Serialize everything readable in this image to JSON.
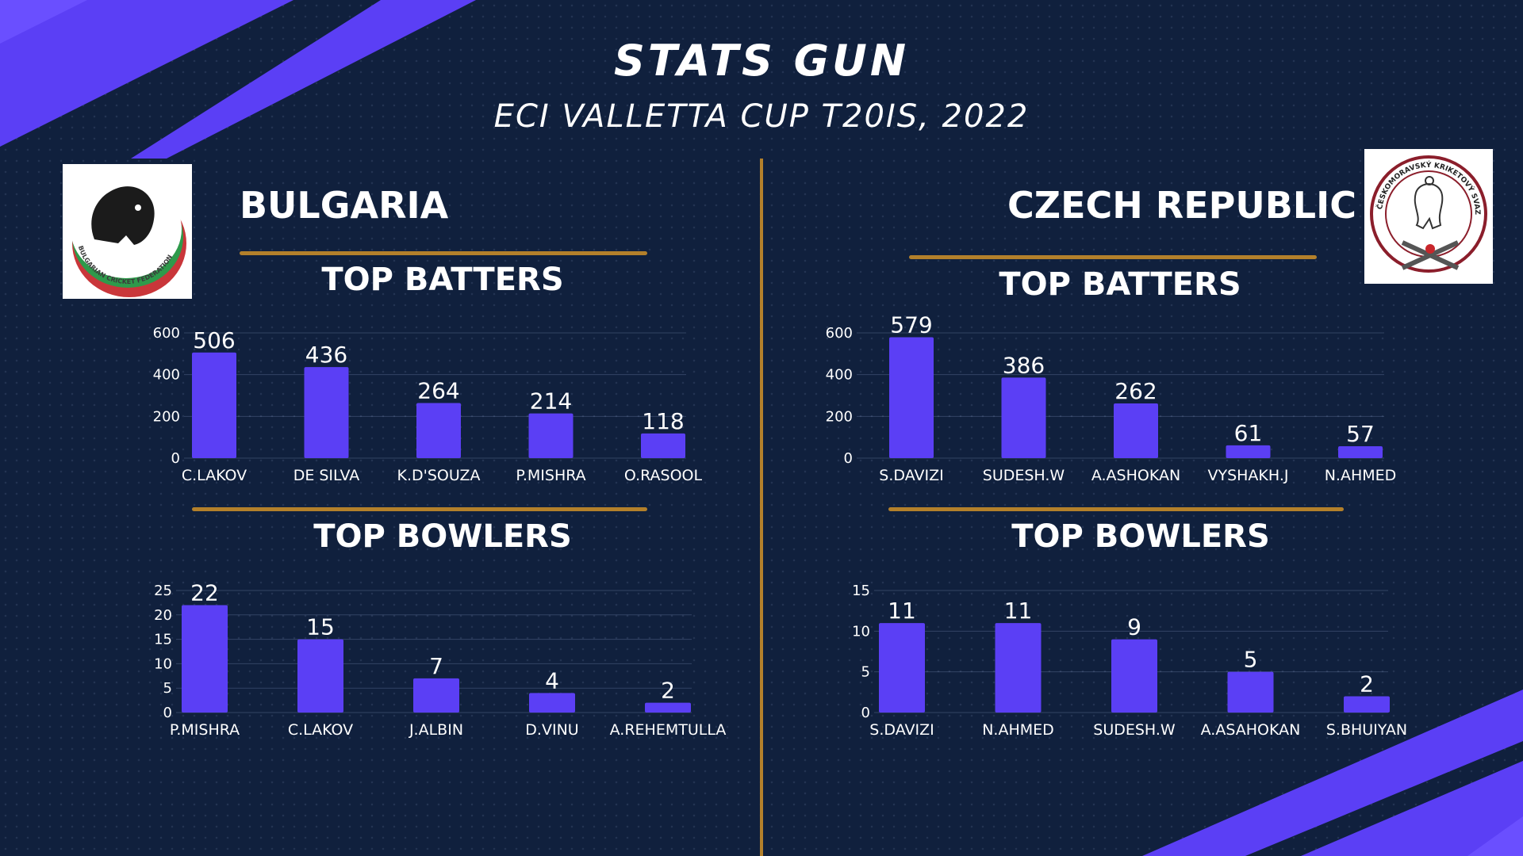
{
  "header": {
    "title": "STATS GUN",
    "subtitle": "ECI VALLETTA CUP T20IS, 2022"
  },
  "colors": {
    "background": "#10203d",
    "accent": "#5b3ff5",
    "gold": "#b3802b"
  },
  "teams": {
    "left": {
      "name": "BULGARIA",
      "logo_text": "BULGARIAN CRICKET FEDERATION"
    },
    "right": {
      "name": "CZECH REPUBLIC",
      "logo_text": "ČESKOMORAVSKÝ KRIKETOVÝ SVAZ"
    }
  },
  "sections": {
    "batters": "TOP BATTERS",
    "bowlers": "TOP BOWLERS"
  },
  "chart_data": [
    {
      "type": "bar",
      "team": "BULGARIA",
      "title": "TOP BATTERS",
      "categories": [
        "C.LAKOV",
        "DE SILVA",
        "K.D'SOUZA",
        "P.MISHRA",
        "O.RASOOL"
      ],
      "values": [
        506,
        436,
        264,
        214,
        118
      ],
      "ylim": [
        0,
        600
      ],
      "yticks": [
        0,
        200,
        400,
        600
      ],
      "grid": true
    },
    {
      "type": "bar",
      "team": "CZECH REPUBLIC",
      "title": "TOP BATTERS",
      "categories": [
        "S.DAVIZI",
        "SUDESH.W",
        "A.ASHOKAN",
        "VYSHAKH.J",
        "N.AHMED"
      ],
      "values": [
        579,
        386,
        262,
        61,
        57
      ],
      "ylim": [
        0,
        600
      ],
      "yticks": [
        0,
        200,
        400,
        600
      ],
      "grid": true
    },
    {
      "type": "bar",
      "team": "BULGARIA",
      "title": "TOP BOWLERS",
      "categories": [
        "P.MISHRA",
        "C.LAKOV",
        "J.ALBIN",
        "D.VINU",
        "A.REHEMTULLA"
      ],
      "values": [
        22,
        15,
        7,
        4,
        2
      ],
      "ylim": [
        0,
        25
      ],
      "yticks": [
        0,
        5,
        10,
        15,
        20,
        25
      ],
      "grid": true
    },
    {
      "type": "bar",
      "team": "CZECH REPUBLIC",
      "title": "TOP BOWLERS",
      "categories": [
        "S.DAVIZI",
        "N.AHMED",
        "SUDESH.W",
        "A.ASAHOKAN",
        "S.BHUIYAN"
      ],
      "values": [
        11,
        11,
        9,
        5,
        2
      ],
      "ylim": [
        0,
        15
      ],
      "yticks": [
        0,
        5,
        10,
        15
      ],
      "grid": true
    }
  ]
}
